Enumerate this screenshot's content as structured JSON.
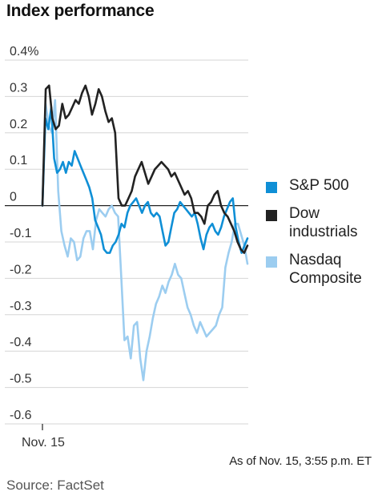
{
  "title": "Index performance",
  "note": "As of Nov. 15, 3:55 p.m. ET",
  "source": "Source: FactSet",
  "legend": [
    {
      "label": "S&P 500",
      "color": "#0f8fd6"
    },
    {
      "label": "Dow industrials",
      "color": "#222222"
    },
    {
      "label": "Nasdaq Composite",
      "color": "#9ccdf0"
    }
  ],
  "chart_data": {
    "type": "line",
    "ylim": [
      -0.6,
      0.4
    ],
    "yticks": [
      {
        "value": 0.4,
        "label": "0.4%"
      },
      {
        "value": 0.3,
        "label": "0.3"
      },
      {
        "value": 0.2,
        "label": "0.2"
      },
      {
        "value": 0.1,
        "label": "0.1"
      },
      {
        "value": 0,
        "label": "0"
      },
      {
        "value": -0.1,
        "label": "-0.1"
      },
      {
        "value": -0.2,
        "label": "-0.2"
      },
      {
        "value": -0.3,
        "label": "-0.3"
      },
      {
        "value": -0.4,
        "label": "-0.4"
      },
      {
        "value": -0.5,
        "label": "-0.5"
      },
      {
        "value": -0.6,
        "label": "-0.6"
      }
    ],
    "xtick_label": "Nov. 15",
    "grid": true,
    "series": [
      {
        "name": "Nasdaq Composite",
        "color": "#9ccdf0",
        "values": [
          0.0,
          0.28,
          0.22,
          0.2,
          0.29,
          0.04,
          -0.07,
          -0.11,
          -0.14,
          -0.09,
          -0.1,
          -0.15,
          -0.14,
          -0.09,
          -0.07,
          -0.07,
          -0.12,
          -0.04,
          -0.01,
          -0.02,
          -0.03,
          -0.01,
          0.0,
          -0.02,
          -0.03,
          -0.2,
          -0.37,
          -0.36,
          -0.42,
          -0.33,
          -0.32,
          -0.42,
          -0.48,
          -0.4,
          -0.36,
          -0.31,
          -0.27,
          -0.25,
          -0.22,
          -0.24,
          -0.21,
          -0.19,
          -0.16,
          -0.19,
          -0.2,
          -0.24,
          -0.28,
          -0.3,
          -0.33,
          -0.35,
          -0.32,
          -0.34,
          -0.36,
          -0.35,
          -0.34,
          -0.33,
          -0.3,
          -0.28,
          -0.17,
          -0.13,
          -0.1,
          -0.05,
          -0.05,
          -0.08,
          -0.11,
          -0.16
        ]
      },
      {
        "name": "S&P 500",
        "color": "#0f8fd6",
        "values": [
          0.0,
          0.24,
          0.21,
          0.27,
          0.13,
          0.09,
          0.1,
          0.12,
          0.09,
          0.12,
          0.11,
          0.15,
          0.13,
          0.11,
          0.09,
          0.07,
          0.05,
          0.02,
          -0.04,
          -0.06,
          -0.08,
          -0.12,
          -0.13,
          -0.13,
          -0.11,
          -0.1,
          -0.08,
          -0.05,
          -0.06,
          -0.02,
          0.0,
          0.01,
          0.02,
          0.0,
          -0.02,
          0.0,
          0.01,
          -0.02,
          -0.03,
          -0.02,
          -0.03,
          -0.07,
          -0.11,
          -0.1,
          -0.06,
          -0.02,
          -0.01,
          0.01,
          0.0,
          -0.01,
          -0.02,
          -0.03,
          -0.02,
          -0.05,
          -0.09,
          -0.12,
          -0.08,
          -0.06,
          -0.05,
          -0.07,
          -0.08,
          -0.06,
          -0.03,
          -0.01,
          0.01,
          0.02,
          -0.06,
          -0.1,
          -0.13,
          -0.11,
          -0.09
        ]
      },
      {
        "name": "Dow industrials",
        "color": "#222222",
        "values": [
          0.0,
          0.32,
          0.33,
          0.24,
          0.21,
          0.22,
          0.28,
          0.24,
          0.25,
          0.27,
          0.29,
          0.28,
          0.31,
          0.33,
          0.3,
          0.25,
          0.28,
          0.32,
          0.3,
          0.26,
          0.23,
          0.24,
          0.2,
          0.02,
          0.0,
          0.0,
          0.02,
          0.04,
          0.08,
          0.1,
          0.12,
          0.09,
          0.06,
          0.08,
          0.1,
          0.11,
          0.12,
          0.11,
          0.1,
          0.08,
          0.09,
          0.07,
          0.05,
          0.03,
          0.04,
          0.02,
          -0.02,
          -0.02,
          -0.03,
          -0.05,
          0.0,
          0.01,
          0.03,
          0.04,
          0.0,
          -0.02,
          -0.03,
          -0.05,
          -0.07,
          -0.1,
          -0.12,
          -0.13,
          -0.11
        ]
      }
    ]
  }
}
